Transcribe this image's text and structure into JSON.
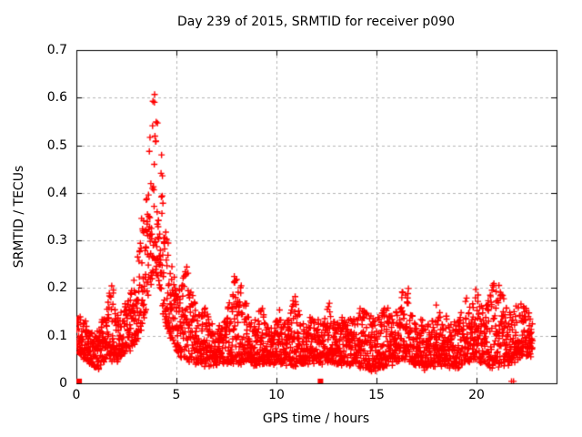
{
  "chart_data": {
    "type": "scatter",
    "title": "Day 239 of 2015, SRMTID for receiver p090",
    "xlabel": "GPS time / hours",
    "ylabel": "SRMTID / TECUs",
    "xlim": [
      0,
      24
    ],
    "ylim": [
      0,
      0.7
    ],
    "xticks": [
      0,
      5,
      10,
      15,
      20
    ],
    "yticks": [
      0,
      0.1,
      0.2,
      0.3,
      0.4,
      0.5,
      0.6,
      0.7
    ],
    "xtick_labels": [
      "0",
      "5",
      "10",
      "15",
      "20"
    ],
    "ytick_labels": [
      "0",
      "0.1",
      "0.2",
      "0.3",
      "0.4",
      "0.5",
      "0.6",
      "0.7"
    ],
    "grid": true,
    "legend": "none",
    "marker": {
      "shape": "plus",
      "color": "#ff0000",
      "size": 7
    },
    "colors": {
      "background": "#ffffff",
      "plot_border": "#000000",
      "grid": "#b5b5b5",
      "points": "#ff0000",
      "text": "#000000"
    },
    "series_name": "SRMTID vs GPS time",
    "summary": {
      "baseline_tecu": 0.07,
      "peak_value_tecu": 0.64,
      "peak_time_hours": 3.85,
      "data_end_hours": 22.8
    },
    "sampling": {
      "points_per_hour": 118,
      "t_start": 0.02,
      "t_end": 22.8,
      "seed": 1439,
      "shape_exponent": 1.5,
      "jitter": 0.012,
      "min_value": 0.013
    },
    "envelope_high": [
      [
        0,
        0.16
      ],
      [
        0.3,
        0.14
      ],
      [
        0.6,
        0.12
      ],
      [
        0.9,
        0.1
      ],
      [
        1.1,
        0.12
      ],
      [
        1.4,
        0.15
      ],
      [
        1.6,
        0.19
      ],
      [
        1.8,
        0.21
      ],
      [
        2.0,
        0.15
      ],
      [
        2.3,
        0.16
      ],
      [
        2.6,
        0.18
      ],
      [
        2.9,
        0.22
      ],
      [
        3.1,
        0.3
      ],
      [
        3.3,
        0.37
      ],
      [
        3.5,
        0.5
      ],
      [
        3.7,
        0.59
      ],
      [
        3.85,
        0.64
      ],
      [
        4.0,
        0.58
      ],
      [
        4.15,
        0.55
      ],
      [
        4.3,
        0.46
      ],
      [
        4.5,
        0.33
      ],
      [
        4.7,
        0.27
      ],
      [
        4.9,
        0.22
      ],
      [
        5.1,
        0.2
      ],
      [
        5.35,
        0.25
      ],
      [
        5.55,
        0.25
      ],
      [
        5.75,
        0.23
      ],
      [
        5.95,
        0.16
      ],
      [
        6.2,
        0.14
      ],
      [
        6.45,
        0.17
      ],
      [
        6.7,
        0.13
      ],
      [
        6.95,
        0.15
      ],
      [
        7.2,
        0.13
      ],
      [
        7.5,
        0.14
      ],
      [
        7.8,
        0.21
      ],
      [
        8.0,
        0.25
      ],
      [
        8.2,
        0.22
      ],
      [
        8.4,
        0.19
      ],
      [
        8.65,
        0.14
      ],
      [
        8.9,
        0.13
      ],
      [
        9.2,
        0.17
      ],
      [
        9.5,
        0.13
      ],
      [
        9.8,
        0.13
      ],
      [
        10.1,
        0.16
      ],
      [
        10.4,
        0.13
      ],
      [
        10.7,
        0.15
      ],
      [
        10.95,
        0.21
      ],
      [
        11.2,
        0.14
      ],
      [
        11.5,
        0.13
      ],
      [
        11.8,
        0.14
      ],
      [
        12.1,
        0.13
      ],
      [
        12.4,
        0.13
      ],
      [
        12.65,
        0.17
      ],
      [
        12.9,
        0.13
      ],
      [
        13.2,
        0.14
      ],
      [
        13.5,
        0.13
      ],
      [
        13.8,
        0.14
      ],
      [
        14.1,
        0.15
      ],
      [
        14.35,
        0.17
      ],
      [
        14.6,
        0.14
      ],
      [
        14.9,
        0.15
      ],
      [
        15.2,
        0.14
      ],
      [
        15.5,
        0.17
      ],
      [
        15.8,
        0.14
      ],
      [
        16.1,
        0.16
      ],
      [
        16.35,
        0.21
      ],
      [
        16.55,
        0.22
      ],
      [
        16.8,
        0.15
      ],
      [
        17.1,
        0.13
      ],
      [
        17.4,
        0.15
      ],
      [
        17.7,
        0.13
      ],
      [
        18.0,
        0.17
      ],
      [
        18.3,
        0.14
      ],
      [
        18.6,
        0.15
      ],
      [
        18.9,
        0.13
      ],
      [
        19.2,
        0.14
      ],
      [
        19.5,
        0.18
      ],
      [
        19.75,
        0.16
      ],
      [
        19.95,
        0.22
      ],
      [
        20.2,
        0.16
      ],
      [
        20.5,
        0.18
      ],
      [
        20.75,
        0.23
      ],
      [
        21.0,
        0.22
      ],
      [
        21.2,
        0.23
      ],
      [
        21.45,
        0.16
      ],
      [
        21.7,
        0.15
      ],
      [
        21.95,
        0.17
      ],
      [
        22.2,
        0.18
      ],
      [
        22.45,
        0.17
      ],
      [
        22.65,
        0.14
      ],
      [
        22.8,
        0.13
      ]
    ],
    "envelope_low": [
      [
        0,
        0.07
      ],
      [
        0.5,
        0.05
      ],
      [
        1.0,
        0.03
      ],
      [
        1.5,
        0.05
      ],
      [
        2.0,
        0.05
      ],
      [
        2.5,
        0.06
      ],
      [
        3.0,
        0.09
      ],
      [
        3.3,
        0.12
      ],
      [
        3.6,
        0.18
      ],
      [
        3.85,
        0.24
      ],
      [
        4.1,
        0.22
      ],
      [
        4.4,
        0.13
      ],
      [
        4.7,
        0.1
      ],
      [
        5.0,
        0.07
      ],
      [
        5.4,
        0.05
      ],
      [
        5.8,
        0.04
      ],
      [
        6.5,
        0.04
      ],
      [
        8.0,
        0.045
      ],
      [
        9.0,
        0.04
      ],
      [
        10.0,
        0.045
      ],
      [
        11.0,
        0.04
      ],
      [
        12.0,
        0.045
      ],
      [
        13.0,
        0.04
      ],
      [
        14.0,
        0.04
      ],
      [
        14.9,
        0.025
      ],
      [
        15.5,
        0.04
      ],
      [
        16.5,
        0.05
      ],
      [
        17.4,
        0.03
      ],
      [
        18.0,
        0.04
      ],
      [
        19.0,
        0.035
      ],
      [
        20.0,
        0.05
      ],
      [
        20.6,
        0.04
      ],
      [
        21.1,
        0.03
      ],
      [
        21.6,
        0.04
      ],
      [
        22.0,
        0.05
      ],
      [
        22.4,
        0.06
      ],
      [
        22.8,
        0.06
      ]
    ],
    "zero_markers": [
      {
        "x": 0.14,
        "style": "square"
      },
      {
        "x": 12.2,
        "style": "square"
      },
      {
        "x": 21.75,
        "style": "plus"
      },
      {
        "x": 21.85,
        "style": "plus"
      }
    ]
  }
}
